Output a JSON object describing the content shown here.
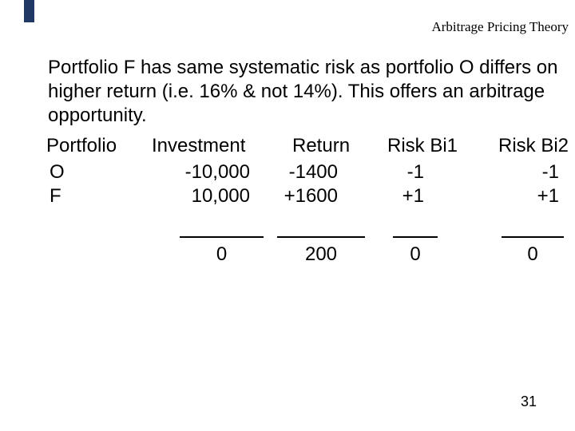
{
  "slide": {
    "header": {
      "title": "Arbitrage Pricing Theory"
    },
    "paragraph": {
      "line1": "Portfolio F has same systematic risk as portfolio O differs on",
      "line2": "higher return (i.e. 16% & not 14%). This offers an arbitrage",
      "line3": "opportunity."
    },
    "table": {
      "headers": [
        "Portfolio",
        "Investment",
        "Return",
        "Risk Bi1",
        "Risk Bi2"
      ],
      "rows": [
        {
          "portfolio": "O",
          "investment": "-10,000",
          "ret": "-1400",
          "risk_bi1": "-1",
          "risk_bi2": "-1"
        },
        {
          "portfolio": "F",
          "investment": "10,000",
          "ret": "+1600",
          "risk_bi1": "+1",
          "risk_bi2": "+1"
        }
      ],
      "totals": {
        "investment": "0",
        "ret": "200",
        "risk_bi1": "0",
        "risk_bi2": "0"
      }
    },
    "page_number": "31",
    "colors": {
      "background": "#FFFFFF",
      "text": "#000000",
      "accent_bar": "#1F3864"
    }
  }
}
